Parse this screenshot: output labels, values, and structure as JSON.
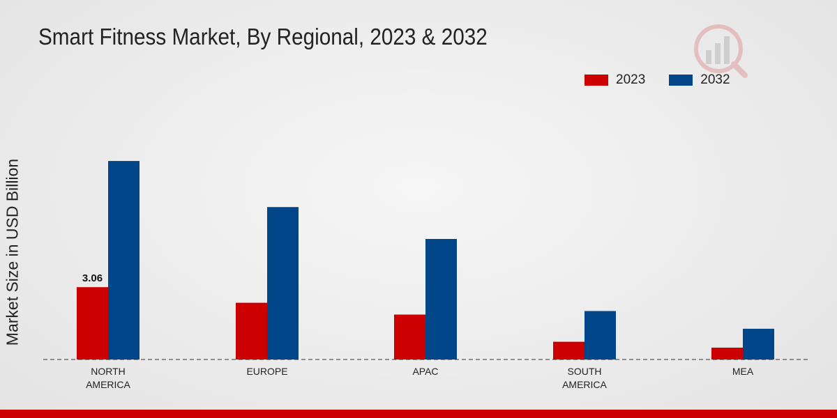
{
  "chart_data": {
    "type": "bar",
    "title": "Smart Fitness Market, By Regional, 2023 & 2032",
    "xlabel": "",
    "ylabel": "Market Size in USD Billion",
    "categories": [
      "NORTH AMERICA",
      "EUROPE",
      "APAC",
      "SOUTH AMERICA",
      "MEA"
    ],
    "category_lines": [
      [
        "NORTH",
        "AMERICA"
      ],
      [
        "EUROPE"
      ],
      [
        "APAC"
      ],
      [
        "SOUTH",
        "AMERICA"
      ],
      [
        "MEA"
      ]
    ],
    "series": [
      {
        "name": "2023",
        "color": "#cc0000",
        "values": [
          3.06,
          2.4,
          1.9,
          0.75,
          0.5
        ]
      },
      {
        "name": "2032",
        "color": "#02468a",
        "values": [
          8.4,
          6.45,
          5.1,
          2.05,
          1.3
        ]
      }
    ],
    "data_labels": [
      {
        "series": 0,
        "index": 0,
        "text": "3.06"
      }
    ],
    "ylim": [
      0,
      12.5
    ],
    "grid": false,
    "legend_position": "top-right"
  }
}
